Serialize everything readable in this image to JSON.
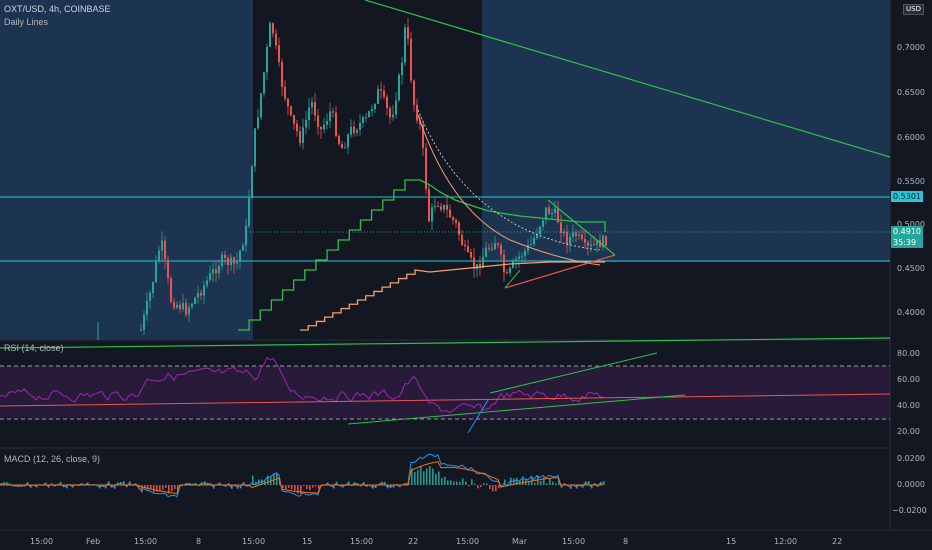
{
  "header": {
    "symbol": "OXT/USD, 4h, COINBASE",
    "indicator": "Daily Lines"
  },
  "price_axis": {
    "currency": "USD",
    "ticks": [
      "0.7000",
      "0.6500",
      "0.6000",
      "0.5500",
      "0.5000",
      "0.4500",
      "0.4000"
    ],
    "marker_upper": "0.5301",
    "marker_current_price": "0.4910",
    "marker_countdown": "35:39"
  },
  "rsi_pane": {
    "label": "RSI (14, close)",
    "ticks": [
      "80.00",
      "60.00",
      "40.00",
      "20.00"
    ]
  },
  "macd_pane": {
    "label": "MACD (12, 26, close, 9)",
    "ticks": [
      "0.0200",
      "0.0000",
      "−0.0200"
    ]
  },
  "time_axis": {
    "ticks": [
      "15:00",
      "Feb",
      "15:00",
      "8",
      "15:00",
      "15",
      "15:00",
      "22",
      "15:00",
      "Mar",
      "15:00",
      "8",
      "15",
      "12:00",
      "22"
    ]
  },
  "colors": {
    "background": "#131722",
    "zone": "#1c3450",
    "up": "#26a69a",
    "down": "#ef5350",
    "green_line": "#2fbf4a",
    "orange_line": "#f0a070",
    "cyan_line": "#29c5d6",
    "rsi_line": "#9c27b0",
    "macd_line": "#2196f3",
    "signal_line": "#ff6d00"
  }
}
